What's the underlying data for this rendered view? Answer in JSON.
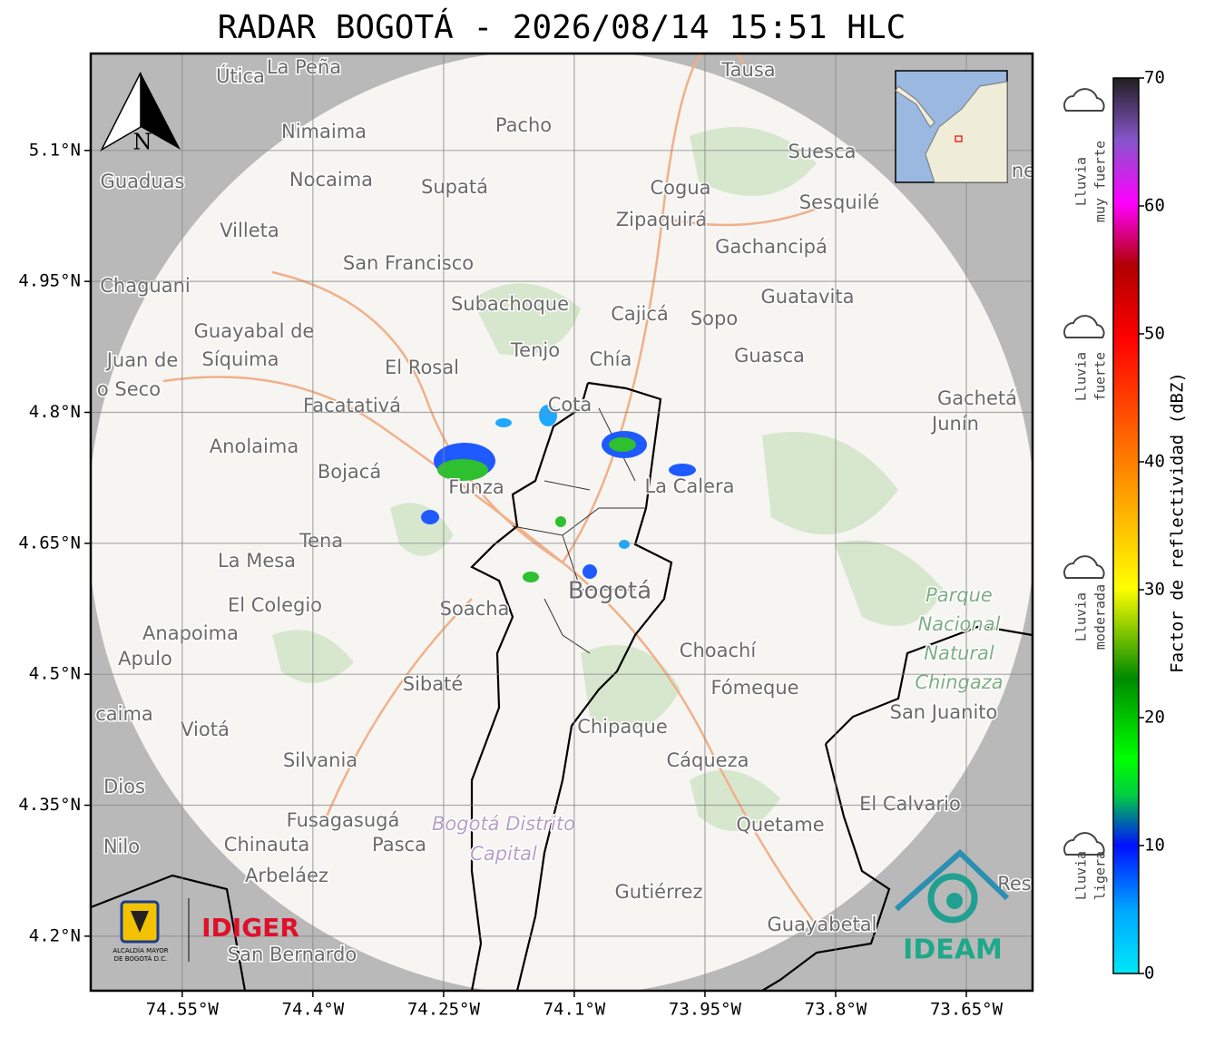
{
  "title": "RADAR BOGOTÁ - 2026/08/14 15:51 HLC",
  "map": {
    "xlim": [
      -74.655,
      -73.574
    ],
    "ylim": [
      4.1375,
      5.211
    ],
    "xticks": [
      {
        "value": -74.55,
        "label": "74.55°W"
      },
      {
        "value": -74.4,
        "label": "74.4°W"
      },
      {
        "value": -74.25,
        "label": "74.25°W"
      },
      {
        "value": -74.1,
        "label": "74.1°W"
      },
      {
        "value": -73.95,
        "label": "73.95°W"
      },
      {
        "value": -73.8,
        "label": "73.8°W"
      },
      {
        "value": -73.65,
        "label": "73.65°W"
      }
    ],
    "yticks": [
      {
        "value": 5.1,
        "label": "5.1°N"
      },
      {
        "value": 4.95,
        "label": "4.95°N"
      },
      {
        "value": 4.8,
        "label": "4.8°N"
      },
      {
        "value": 4.65,
        "label": "4.65°N"
      },
      {
        "value": 4.5,
        "label": "4.5°N"
      },
      {
        "value": 4.35,
        "label": "4.35°N"
      },
      {
        "value": 4.2,
        "label": "4.2°N"
      }
    ],
    "grid": true,
    "north": "N",
    "places": [
      "Útica",
      "La Peña",
      "Tausa",
      "Pacho",
      "Nimaima",
      "Guaduas",
      "Nocaima",
      "Supatá",
      "Cogua",
      "Suesca",
      "Sesquilé",
      "Zipaquirá",
      "Villeta",
      "Gachancipá",
      "San Francisco",
      "Chaguani",
      "Guatavita",
      "Subachoque",
      "Cajicá",
      "Sopo",
      "Guayabal de",
      "Síquima",
      "Juan de",
      "Tenjo",
      "Chía",
      "Guasca",
      "El Rosal",
      "o Seco",
      "Facatativá",
      "Gachetá",
      "Junín",
      "Anolaima",
      "Bojacá",
      "Funza",
      "La Calera",
      "Tena",
      "La Mesa",
      "Bogotá",
      "El Colegio",
      "Soacha",
      "Anapoima",
      "Apulo",
      "Choachí",
      "Sibaté",
      "Fómeque",
      "San Juanito",
      "caima",
      "Viotá",
      "Chipaque",
      "Silvania",
      "Cáqueza",
      "Dios",
      "El Calvario",
      "Fusagasugá",
      "Quetame",
      "Nilo",
      "Chinauta",
      "Pasca",
      "Arbeláez",
      "Gutiérrez",
      "Guayabetal",
      "San Bernardo",
      "Res",
      "ne",
      "Cota"
    ],
    "park": [
      "Parque",
      "Nacional",
      "Natural",
      "Chingaza"
    ],
    "district": [
      "Bogotá Distrito",
      "Capital"
    ]
  },
  "colorbar": {
    "label": "Factor de reflectividad (dBZ)",
    "lim": [
      0,
      70
    ],
    "ticks": [
      0,
      10,
      20,
      30,
      40,
      50,
      60,
      70
    ],
    "categories": [
      [
        "Lluvia",
        "muy fuerte"
      ],
      [
        "Lluvia",
        "fuerte"
      ],
      [
        "Lluvia",
        "moderada"
      ],
      [
        "Lluvia",
        "ligera"
      ]
    ]
  },
  "logos": {
    "idiger": "IDIGER",
    "ideam": "IDEAM",
    "alcaldia": [
      "ALCALDÍA MAYOR",
      "DE BOGOTÁ D.C."
    ]
  }
}
